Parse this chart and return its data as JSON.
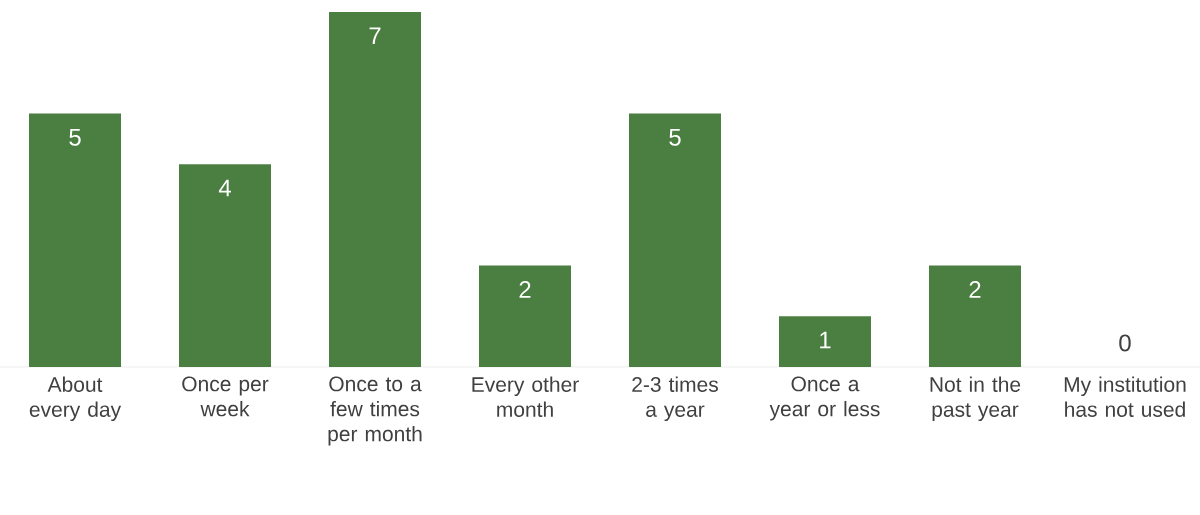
{
  "chart_data": {
    "type": "bar",
    "categories": [
      "About every day",
      "Once per week",
      "Once to a few times per month",
      "Every other month",
      "2-3 times a year",
      "Once a year or less",
      "Not in the past year",
      "My institution has not used"
    ],
    "values": [
      5,
      4,
      7,
      2,
      5,
      1,
      2,
      0
    ],
    "color": "#4a7f41",
    "data_labels": true
  }
}
